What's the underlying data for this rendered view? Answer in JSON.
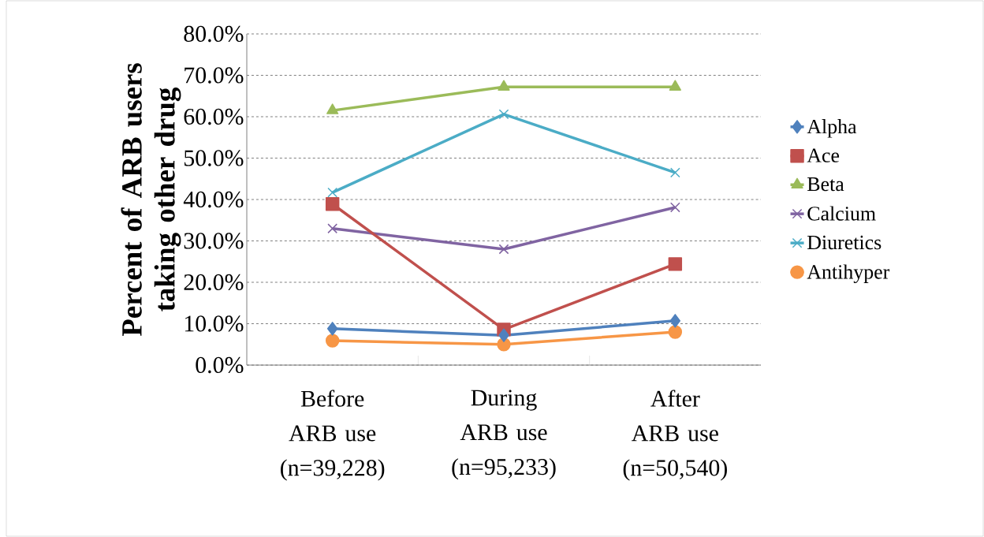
{
  "chart_data": {
    "type": "line",
    "ylabel": "Percent of ARB users taking other drug",
    "categories": [
      "Before ARB use (n=39,228)",
      "During ARB use (n=95,233)",
      "After ARB use (n=50,540)"
    ],
    "series": [
      {
        "name": "Alpha",
        "color": "#4f81bd",
        "marker": "diamond",
        "values": [
          8.8,
          7.2,
          10.7
        ]
      },
      {
        "name": "Ace",
        "color": "#c0504d",
        "marker": "square",
        "values": [
          38.9,
          8.6,
          24.4
        ]
      },
      {
        "name": "Beta",
        "color": "#9bbb59",
        "marker": "triangle",
        "values": [
          61.5,
          67.2,
          67.2
        ]
      },
      {
        "name": "Calcium",
        "color": "#8064a2",
        "marker": "cross",
        "values": [
          33.0,
          28.0,
          38.1
        ]
      },
      {
        "name": "Diuretics",
        "color": "#4bacc6",
        "marker": "cross",
        "values": [
          41.7,
          60.6,
          46.5
        ]
      },
      {
        "name": "Antihyper",
        "color": "#f79646",
        "marker": "circle",
        "values": [
          5.9,
          5.0,
          8.0
        ]
      }
    ],
    "ylim": [
      0,
      80
    ],
    "yticks": [
      {
        "value": 0,
        "label": "0.0%"
      },
      {
        "value": 10,
        "label": "10.0%"
      },
      {
        "value": 20,
        "label": "20.0%"
      },
      {
        "value": 30,
        "label": "30.0%"
      },
      {
        "value": 40,
        "label": "40.0%"
      },
      {
        "value": 50,
        "label": "50.0%"
      },
      {
        "value": 60,
        "label": "60.0%"
      },
      {
        "value": 70,
        "label": "70.0%"
      },
      {
        "value": 80,
        "label": "80.0%"
      }
    ],
    "grid": "y",
    "legend": "right",
    "line_style": "solid"
  }
}
